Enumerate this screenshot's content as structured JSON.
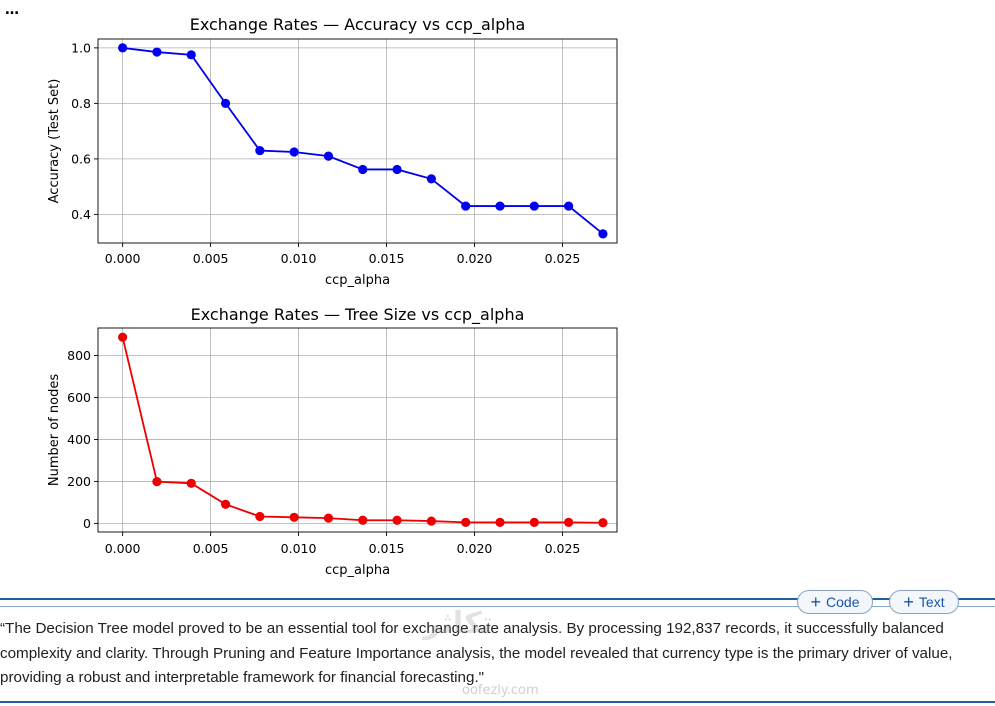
{
  "cell_menu": {
    "ellipsis": "…"
  },
  "chart_data": [
    {
      "type": "line",
      "title": "Exchange Rates — Accuracy vs ccp_alpha",
      "xlabel": "ccp_alpha",
      "ylabel": "Accuracy (Test Set)",
      "x": [
        0.0,
        0.00195,
        0.0039,
        0.00585,
        0.0078,
        0.00975,
        0.0117,
        0.01365,
        0.0156,
        0.01755,
        0.0195,
        0.02145,
        0.0234,
        0.02535,
        0.0273
      ],
      "y": [
        1.0,
        0.985,
        0.975,
        0.8,
        0.63,
        0.625,
        0.61,
        0.562,
        0.562,
        0.528,
        0.43,
        0.43,
        0.43,
        0.43,
        0.33
      ],
      "xlim": [
        -0.0014,
        0.0281
      ],
      "ylim": [
        0.297,
        1.032
      ],
      "xticks": [
        0.0,
        0.005,
        0.01,
        0.015,
        0.02,
        0.025
      ],
      "xtick_labels": [
        "0.000",
        "0.005",
        "0.010",
        "0.015",
        "0.020",
        "0.025"
      ],
      "yticks": [
        0.4,
        0.6,
        0.8,
        1.0
      ],
      "ytick_labels": [
        "0.4",
        "0.6",
        "0.8",
        "1.0"
      ],
      "grid": true,
      "color": "#0000ee",
      "marker": "circle"
    },
    {
      "type": "line",
      "title": "Exchange Rates — Tree Size vs ccp_alpha",
      "xlabel": "ccp_alpha",
      "ylabel": "Number of nodes",
      "x": [
        0.0,
        0.00195,
        0.0039,
        0.00585,
        0.0078,
        0.00975,
        0.0117,
        0.01365,
        0.0156,
        0.01755,
        0.0195,
        0.02145,
        0.0234,
        0.02535,
        0.0273
      ],
      "y": [
        887,
        199,
        191,
        91,
        33,
        29,
        25,
        15,
        15,
        11,
        5,
        5,
        5,
        5,
        3
      ],
      "xlim": [
        -0.0014,
        0.0281
      ],
      "ylim": [
        -41,
        931
      ],
      "xticks": [
        0.0,
        0.005,
        0.01,
        0.015,
        0.02,
        0.025
      ],
      "xtick_labels": [
        "0.000",
        "0.005",
        "0.010",
        "0.015",
        "0.020",
        "0.025"
      ],
      "yticks": [
        0,
        200,
        400,
        600,
        800
      ],
      "ytick_labels": [
        "0",
        "200",
        "400",
        "600",
        "800"
      ],
      "grid": true,
      "color": "#ee0000",
      "marker": "circle"
    }
  ],
  "toolbar": {
    "add_code_label": "Code",
    "add_text_label": "Text",
    "plus_glyph": "+"
  },
  "markdown": {
    "text": "“The Decision Tree model proved to be an essential tool for exchange rate analysis. By processing 192,837 records, it successfully balanced complexity and clarity. Through Pruning and Feature Importance analysis, the model revealed that currency type is the primary driver of value, providing a robust and interpretable framework for financial forecasting.\""
  },
  "watermark": {
    "logo": "تكاثر",
    "site": "oofezly.com"
  },
  "colors": {
    "divider": "#1f5fa6",
    "button_text": "#1a56a8"
  }
}
